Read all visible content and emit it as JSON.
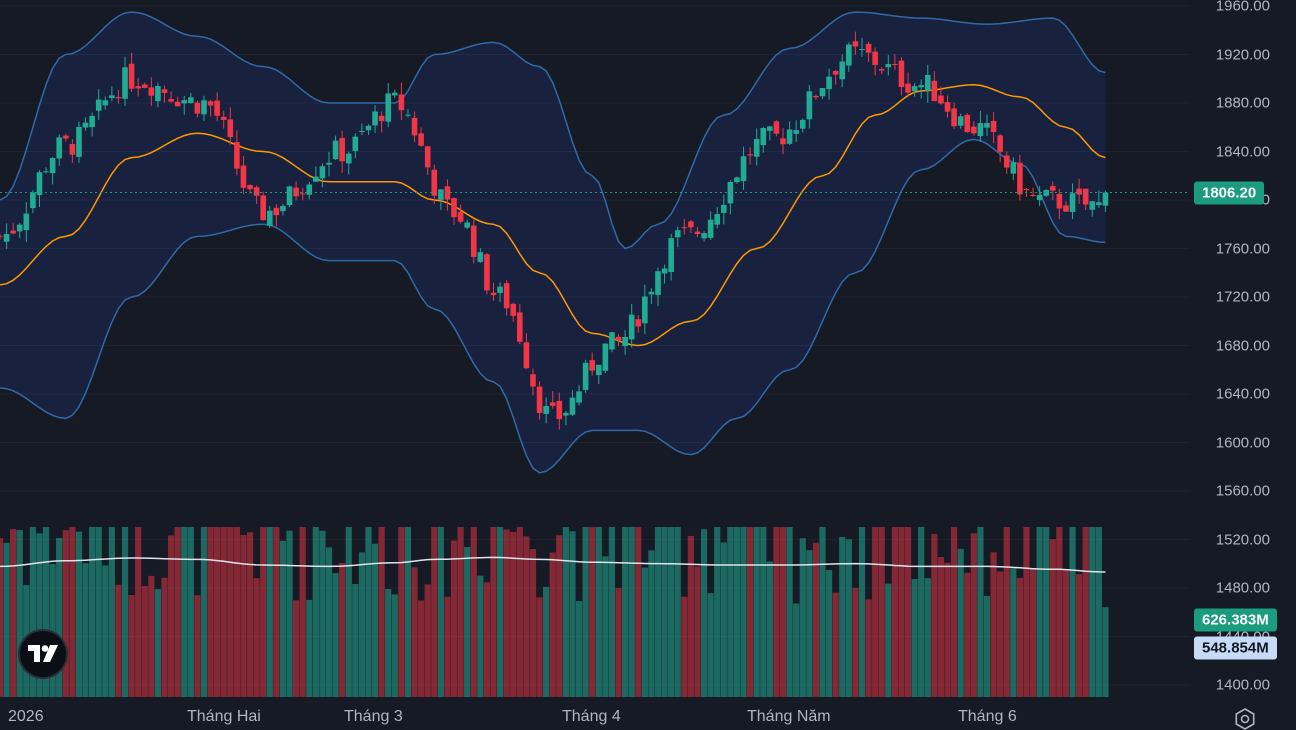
{
  "chart_data": {
    "type": "candlestick",
    "indicators": [
      "Bollinger Bands",
      "Volume",
      "Volume MA"
    ],
    "price_axis": {
      "range": [
        1400,
        1960
      ],
      "ticks": [
        "1960.00",
        "1920.00",
        "1880.00",
        "1840.00",
        "1800.00",
        "1760.00",
        "1720.00",
        "1680.00",
        "1640.00",
        "1600.00",
        "1560.00",
        "1520.00",
        "1480.00",
        "1440.00",
        "1400.00"
      ]
    },
    "time_axis": {
      "labels": [
        "2026",
        "Tháng Hai",
        "Tháng 3",
        "Tháng 4",
        "Tháng Năm",
        "Tháng 6"
      ]
    },
    "last_price": "1806.20",
    "last_volume": "626.383M",
    "volume_ma": "548.854M",
    "colors": {
      "up": "#22ab94",
      "down": "#f23645",
      "band": "#2962ff",
      "basis": "#ff9800",
      "vol_ma": "#e0e3eb",
      "price_tag": "#1b9c7e"
    },
    "price_anchors": [
      [
        0,
        1770
      ],
      [
        10,
        1845
      ],
      [
        20,
        1900
      ],
      [
        31,
        1880
      ],
      [
        40,
        1790
      ],
      [
        52,
        1840
      ],
      [
        60,
        1880
      ],
      [
        69,
        1790
      ],
      [
        76,
        1720
      ],
      [
        84,
        1620
      ],
      [
        93,
        1680
      ],
      [
        104,
        1770
      ],
      [
        117,
        1850
      ],
      [
        130,
        1920
      ],
      [
        140,
        1895
      ],
      [
        148,
        1860
      ],
      [
        158,
        1800
      ],
      [
        168,
        1795
      ]
    ],
    "upper_band": [
      [
        0,
        1800
      ],
      [
        10,
        1920
      ],
      [
        20,
        1955
      ],
      [
        30,
        1935
      ],
      [
        40,
        1910
      ],
      [
        50,
        1880
      ],
      [
        60,
        1880
      ],
      [
        66,
        1920
      ],
      [
        75,
        1930
      ],
      [
        82,
        1910
      ],
      [
        90,
        1820
      ],
      [
        95,
        1760
      ],
      [
        100,
        1780
      ],
      [
        110,
        1870
      ],
      [
        120,
        1925
      ],
      [
        130,
        1955
      ],
      [
        140,
        1950
      ],
      [
        150,
        1945
      ],
      [
        160,
        1950
      ],
      [
        168,
        1905
      ]
    ],
    "basis": [
      [
        0,
        1730
      ],
      [
        10,
        1770
      ],
      [
        20,
        1835
      ],
      [
        30,
        1855
      ],
      [
        40,
        1840
      ],
      [
        50,
        1815
      ],
      [
        60,
        1815
      ],
      [
        66,
        1800
      ],
      [
        75,
        1780
      ],
      [
        82,
        1740
      ],
      [
        90,
        1690
      ],
      [
        97,
        1680
      ],
      [
        105,
        1700
      ],
      [
        115,
        1760
      ],
      [
        125,
        1820
      ],
      [
        133,
        1870
      ],
      [
        140,
        1890
      ],
      [
        148,
        1895
      ],
      [
        155,
        1885
      ],
      [
        162,
        1860
      ],
      [
        168,
        1835
      ]
    ],
    "lower_band": [
      [
        0,
        1645
      ],
      [
        10,
        1620
      ],
      [
        20,
        1720
      ],
      [
        30,
        1770
      ],
      [
        40,
        1780
      ],
      [
        50,
        1750
      ],
      [
        60,
        1750
      ],
      [
        66,
        1710
      ],
      [
        75,
        1650
      ],
      [
        82,
        1575
      ],
      [
        90,
        1610
      ],
      [
        97,
        1610
      ],
      [
        105,
        1590
      ],
      [
        112,
        1620
      ],
      [
        120,
        1660
      ],
      [
        130,
        1740
      ],
      [
        140,
        1825
      ],
      [
        148,
        1850
      ],
      [
        155,
        1830
      ],
      [
        162,
        1770
      ],
      [
        168,
        1765
      ]
    ],
    "volume_ma_curve": [
      [
        0,
        465
      ],
      [
        10,
        485
      ],
      [
        20,
        495
      ],
      [
        30,
        490
      ],
      [
        40,
        470
      ],
      [
        50,
        465
      ],
      [
        60,
        478
      ],
      [
        66,
        490
      ],
      [
        75,
        497
      ],
      [
        82,
        490
      ],
      [
        90,
        480
      ],
      [
        100,
        475
      ],
      [
        110,
        470
      ],
      [
        120,
        470
      ],
      [
        130,
        475
      ],
      [
        140,
        465
      ],
      [
        150,
        465
      ],
      [
        160,
        455
      ],
      [
        168,
        445
      ]
    ]
  }
}
